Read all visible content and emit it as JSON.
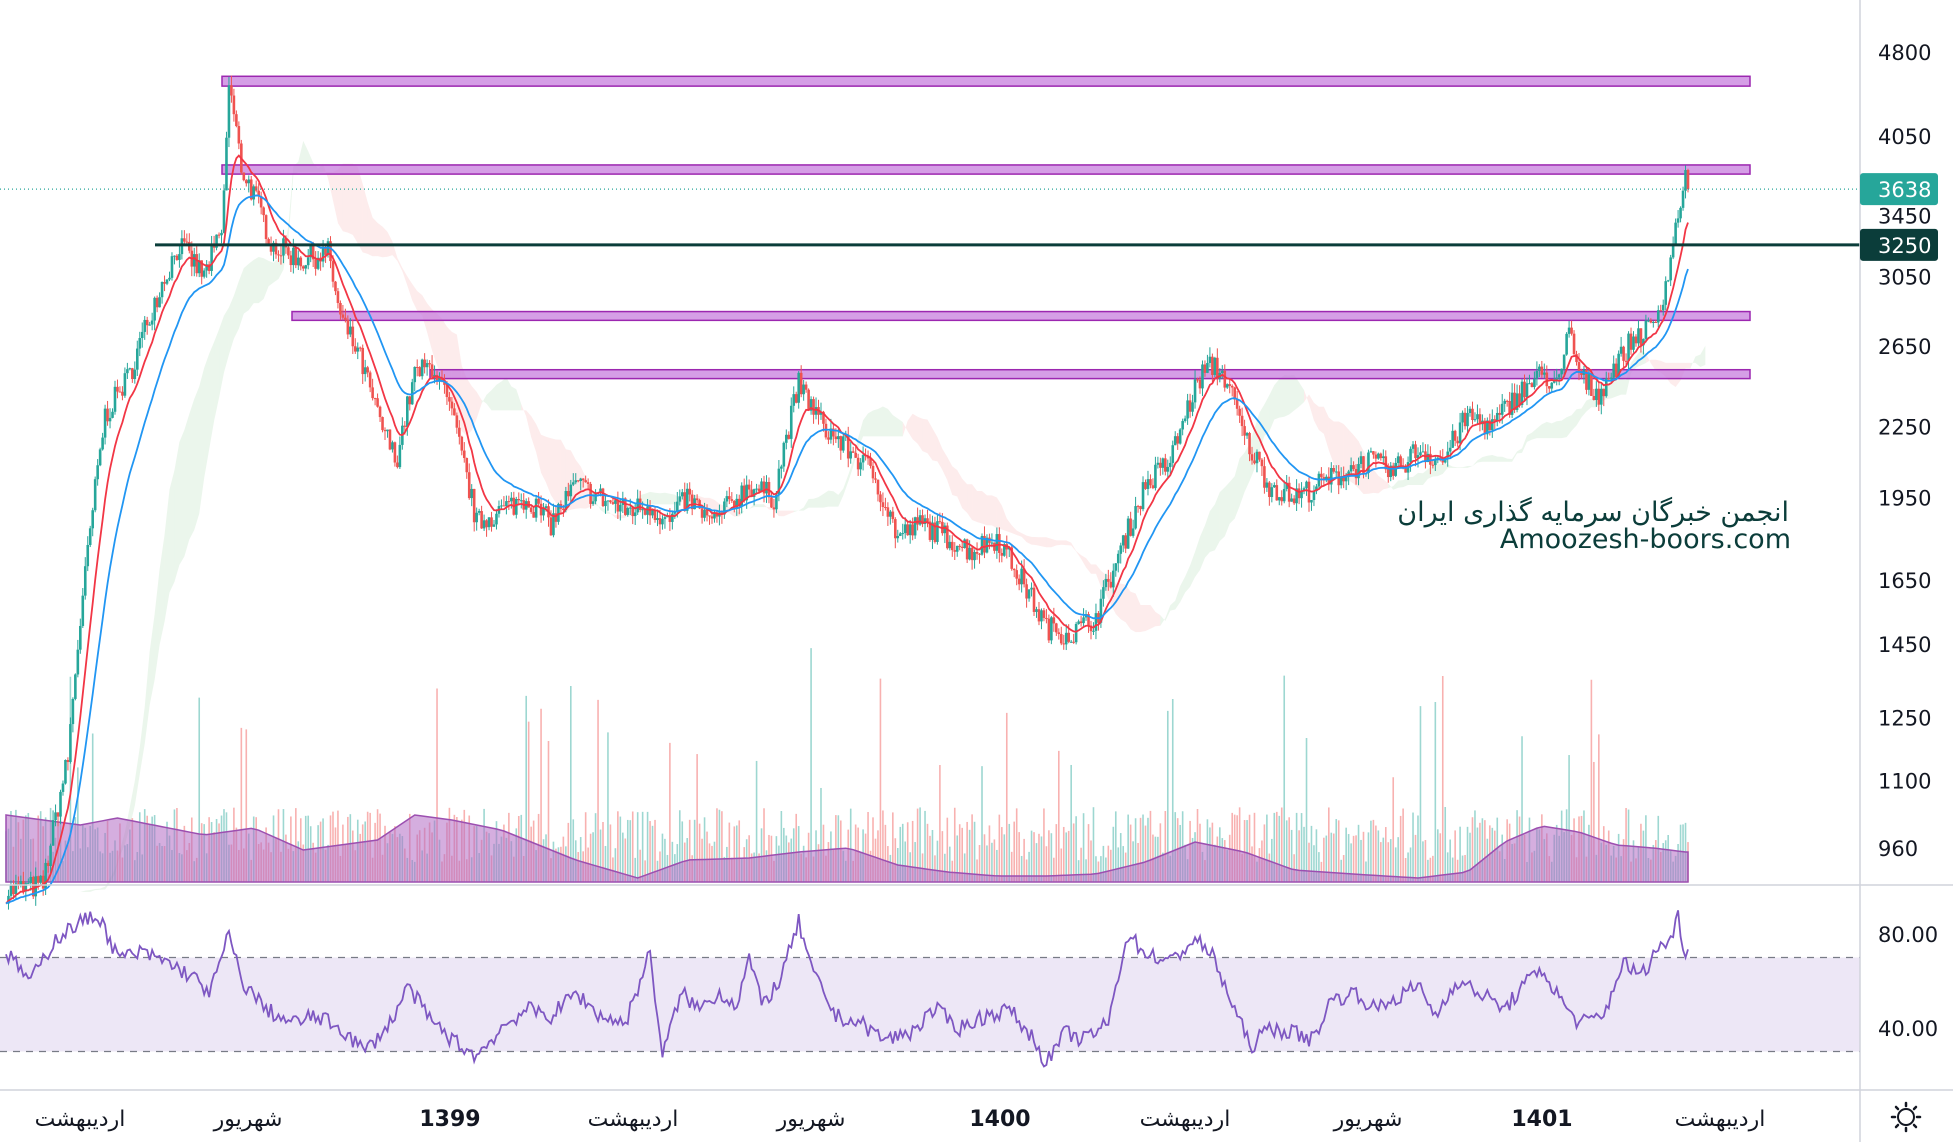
{
  "watermark": {
    "line1": "انجمن خبرگان سرمایه گذاری ایران",
    "line2": "Amoozesh-boors.com"
  },
  "colors": {
    "up": "#26a69a",
    "down": "#ef5350",
    "ema_fast": "#f23645",
    "ema_slow": "#2196f3",
    "zone": "#c77dde",
    "zone_border": "#9c27b0",
    "support_line": "#0b3d3a",
    "cloud_green": "#4caf50",
    "cloud_red": "#ef5350",
    "rsi_line": "#7e57c2",
    "rsi_band": "#ede7f6",
    "volume_area": "#b36bc4"
  },
  "chart_data": {
    "type": "candlestick",
    "price_axis": {
      "ticks": [
        4800,
        4050,
        3450,
        3050,
        2650,
        2250,
        1950,
        1650,
        1450,
        1250,
        1100,
        960
      ],
      "scale": "log",
      "range": [
        880,
        5000
      ]
    },
    "last_price": {
      "value": 3638,
      "label": "3638"
    },
    "support_level": {
      "value": 3250,
      "label": "3250"
    },
    "resistance_zones": [
      {
        "low": 4480,
        "high": 4570
      },
      {
        "low": 3750,
        "high": 3820
      },
      {
        "low": 2790,
        "high": 2840
      },
      {
        "low": 2480,
        "high": 2525
      }
    ],
    "time_axis": {
      "labels": [
        {
          "text": "اردیبهشت",
          "year": false
        },
        {
          "text": "شهریور",
          "year": false
        },
        {
          "text": "1399",
          "year": true
        },
        {
          "text": "اردیبهشت",
          "year": false
        },
        {
          "text": "شهریور",
          "year": false
        },
        {
          "text": "1400",
          "year": true
        },
        {
          "text": "اردیبهشت",
          "year": false
        },
        {
          "text": "شهریور",
          "year": false
        },
        {
          "text": "1401",
          "year": true
        },
        {
          "text": "اردیبهشت",
          "year": false
        }
      ]
    },
    "price_anchors": [
      [
        0,
        880
      ],
      [
        30,
        890
      ],
      [
        50,
        1150
      ],
      [
        65,
        1700
      ],
      [
        80,
        2300
      ],
      [
        100,
        2500
      ],
      [
        120,
        2900
      ],
      [
        140,
        3250
      ],
      [
        160,
        3050
      ],
      [
        175,
        3350
      ],
      [
        180,
        4500
      ],
      [
        190,
        3800
      ],
      [
        200,
        3600
      ],
      [
        215,
        3250
      ],
      [
        240,
        3150
      ],
      [
        260,
        3200
      ],
      [
        270,
        2800
      ],
      [
        285,
        2600
      ],
      [
        300,
        2300
      ],
      [
        315,
        2100
      ],
      [
        330,
        2500
      ],
      [
        345,
        2550
      ],
      [
        360,
        2300
      ],
      [
        380,
        1850
      ],
      [
        400,
        1900
      ],
      [
        420,
        1950
      ],
      [
        440,
        1850
      ],
      [
        460,
        2000
      ],
      [
        480,
        1950
      ],
      [
        500,
        1900
      ],
      [
        520,
        1920
      ],
      [
        535,
        1850
      ],
      [
        550,
        1950
      ],
      [
        570,
        1850
      ],
      [
        600,
        2000
      ],
      [
        620,
        1950
      ],
      [
        640,
        2450
      ],
      [
        660,
        2250
      ],
      [
        680,
        2150
      ],
      [
        700,
        2050
      ],
      [
        720,
        1800
      ],
      [
        740,
        1850
      ],
      [
        760,
        1800
      ],
      [
        780,
        1750
      ],
      [
        800,
        1800
      ],
      [
        820,
        1650
      ],
      [
        840,
        1500
      ],
      [
        860,
        1480
      ],
      [
        880,
        1530
      ],
      [
        900,
        1750
      ],
      [
        920,
        2000
      ],
      [
        940,
        2100
      ],
      [
        955,
        2350
      ],
      [
        965,
        2500
      ],
      [
        975,
        2550
      ],
      [
        985,
        2480
      ],
      [
        1000,
        2200
      ],
      [
        1020,
        2000
      ],
      [
        1040,
        1950
      ],
      [
        1060,
        2000
      ],
      [
        1080,
        2050
      ],
      [
        1100,
        2100
      ],
      [
        1120,
        2050
      ],
      [
        1140,
        2150
      ],
      [
        1160,
        2100
      ],
      [
        1180,
        2300
      ],
      [
        1200,
        2250
      ],
      [
        1220,
        2400
      ],
      [
        1240,
        2500
      ],
      [
        1255,
        2450
      ],
      [
        1262,
        2750
      ],
      [
        1270,
        2500
      ],
      [
        1285,
        2400
      ],
      [
        1300,
        2550
      ],
      [
        1315,
        2700
      ],
      [
        1330,
        2750
      ],
      [
        1340,
        3000
      ],
      [
        1348,
        3350
      ],
      [
        1355,
        3720
      ],
      [
        1358,
        3638
      ]
    ],
    "rsi": {
      "ticks": [
        80.0,
        40.0
      ],
      "tick_labels": [
        "80.00",
        "40.00"
      ],
      "upper_band": 70,
      "lower_band": 30,
      "range": [
        20,
        94
      ],
      "anchors": [
        [
          0,
          72
        ],
        [
          20,
          60
        ],
        [
          40,
          78
        ],
        [
          60,
          85
        ],
        [
          75,
          88
        ],
        [
          90,
          70
        ],
        [
          110,
          72
        ],
        [
          130,
          68
        ],
        [
          150,
          62
        ],
        [
          165,
          55
        ],
        [
          180,
          80
        ],
        [
          190,
          60
        ],
        [
          210,
          48
        ],
        [
          230,
          42
        ],
        [
          250,
          45
        ],
        [
          270,
          40
        ],
        [
          290,
          30
        ],
        [
          310,
          42
        ],
        [
          325,
          58
        ],
        [
          340,
          45
        ],
        [
          360,
          35
        ],
        [
          380,
          28
        ],
        [
          400,
          40
        ],
        [
          420,
          48
        ],
        [
          440,
          45
        ],
        [
          460,
          55
        ],
        [
          480,
          45
        ],
        [
          500,
          42
        ],
        [
          520,
          72
        ],
        [
          530,
          28
        ],
        [
          545,
          55
        ],
        [
          560,
          48
        ],
        [
          575,
          55
        ],
        [
          590,
          50
        ],
        [
          600,
          70
        ],
        [
          610,
          50
        ],
        [
          625,
          60
        ],
        [
          640,
          85
        ],
        [
          650,
          65
        ],
        [
          670,
          45
        ],
        [
          690,
          42
        ],
        [
          710,
          35
        ],
        [
          730,
          38
        ],
        [
          750,
          48
        ],
        [
          770,
          40
        ],
        [
          790,
          45
        ],
        [
          810,
          48
        ],
        [
          830,
          35
        ],
        [
          840,
          25
        ],
        [
          855,
          38
        ],
        [
          870,
          35
        ],
        [
          890,
          42
        ],
        [
          905,
          80
        ],
        [
          920,
          72
        ],
        [
          940,
          68
        ],
        [
          960,
          78
        ],
        [
          975,
          70
        ],
        [
          990,
          50
        ],
        [
          1005,
          32
        ],
        [
          1020,
          40
        ],
        [
          1040,
          38
        ],
        [
          1055,
          35
        ],
        [
          1070,
          52
        ],
        [
          1090,
          55
        ],
        [
          1105,
          48
        ],
        [
          1120,
          52
        ],
        [
          1140,
          58
        ],
        [
          1155,
          45
        ],
        [
          1170,
          60
        ],
        [
          1190,
          55
        ],
        [
          1210,
          48
        ],
        [
          1225,
          58
        ],
        [
          1240,
          65
        ],
        [
          1255,
          52
        ],
        [
          1270,
          42
        ],
        [
          1290,
          45
        ],
        [
          1305,
          68
        ],
        [
          1320,
          62
        ],
        [
          1335,
          75
        ],
        [
          1345,
          78
        ],
        [
          1350,
          88
        ],
        [
          1355,
          73
        ]
      ]
    }
  }
}
